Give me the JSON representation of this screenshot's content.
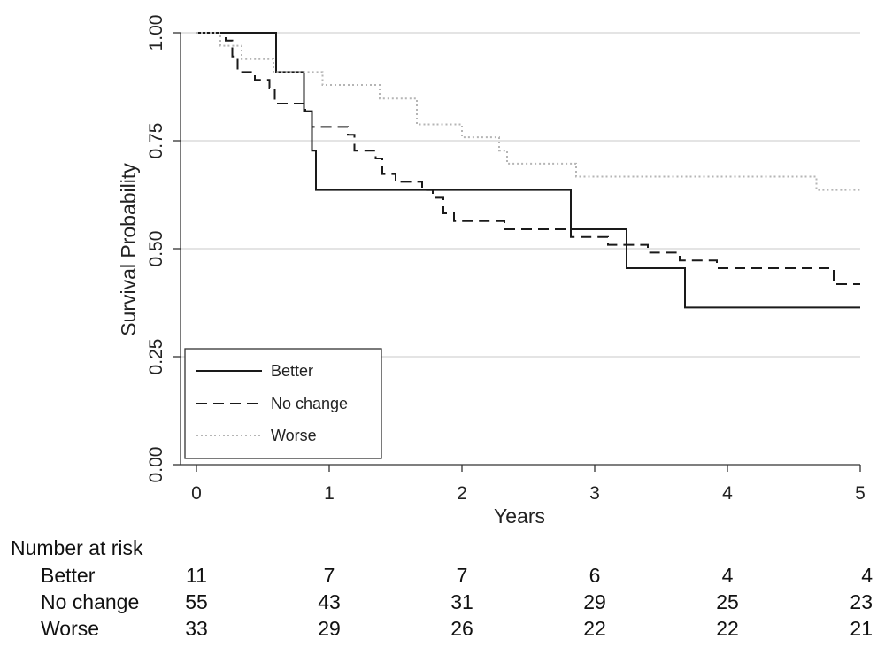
{
  "chart_data": {
    "type": "line",
    "xlabel": "Years",
    "ylabel": "Survival Probability",
    "xlim": [
      0,
      5
    ],
    "ylim": [
      0,
      1
    ],
    "x_ticks": [
      0,
      1,
      2,
      3,
      4,
      5
    ],
    "x_tick_labels": [
      "0",
      "1",
      "2",
      "3",
      "4",
      "5"
    ],
    "y_ticks": [
      0,
      0.25,
      0.5,
      0.75,
      1
    ],
    "y_tick_labels": [
      "0.00",
      "0.25",
      "0.50",
      "0.75",
      "1.00"
    ],
    "grid": "horizontal",
    "legend_position": "bottom-left",
    "series": [
      {
        "name": "Better",
        "style": "solid",
        "color": "#1a1a1a",
        "points": [
          [
            0,
            1.0
          ],
          [
            0.6,
            1.0
          ],
          [
            0.6,
            0.909
          ],
          [
            0.81,
            0.909
          ],
          [
            0.81,
            0.818
          ],
          [
            0.87,
            0.818
          ],
          [
            0.87,
            0.727
          ],
          [
            0.9,
            0.727
          ],
          [
            0.9,
            0.636
          ],
          [
            2.82,
            0.636
          ],
          [
            2.82,
            0.545
          ],
          [
            3.24,
            0.545
          ],
          [
            3.24,
            0.455
          ],
          [
            3.68,
            0.455
          ],
          [
            3.68,
            0.364
          ],
          [
            5.0,
            0.364
          ]
        ]
      },
      {
        "name": "No change",
        "style": "dashed",
        "color": "#1a1a1a",
        "points": [
          [
            0,
            1.0
          ],
          [
            0.22,
            1.0
          ],
          [
            0.22,
            0.982
          ],
          [
            0.27,
            0.982
          ],
          [
            0.27,
            0.945
          ],
          [
            0.31,
            0.945
          ],
          [
            0.31,
            0.909
          ],
          [
            0.44,
            0.909
          ],
          [
            0.44,
            0.891
          ],
          [
            0.55,
            0.891
          ],
          [
            0.55,
            0.873
          ],
          [
            0.59,
            0.873
          ],
          [
            0.59,
            0.836
          ],
          [
            0.82,
            0.836
          ],
          [
            0.82,
            0.818
          ],
          [
            0.87,
            0.818
          ],
          [
            0.87,
            0.782
          ],
          [
            1.14,
            0.782
          ],
          [
            1.14,
            0.764
          ],
          [
            1.19,
            0.764
          ],
          [
            1.19,
            0.727
          ],
          [
            1.35,
            0.727
          ],
          [
            1.35,
            0.709
          ],
          [
            1.4,
            0.709
          ],
          [
            1.4,
            0.673
          ],
          [
            1.5,
            0.673
          ],
          [
            1.5,
            0.655
          ],
          [
            1.7,
            0.655
          ],
          [
            1.7,
            0.636
          ],
          [
            1.78,
            0.636
          ],
          [
            1.78,
            0.618
          ],
          [
            1.86,
            0.618
          ],
          [
            1.86,
            0.582
          ],
          [
            1.94,
            0.582
          ],
          [
            1.94,
            0.564
          ],
          [
            2.32,
            0.564
          ],
          [
            2.32,
            0.545
          ],
          [
            2.82,
            0.545
          ],
          [
            2.82,
            0.527
          ],
          [
            3.1,
            0.527
          ],
          [
            3.1,
            0.509
          ],
          [
            3.4,
            0.509
          ],
          [
            3.4,
            0.491
          ],
          [
            3.64,
            0.491
          ],
          [
            3.64,
            0.473
          ],
          [
            3.92,
            0.473
          ],
          [
            3.92,
            0.455
          ],
          [
            4.8,
            0.455
          ],
          [
            4.8,
            0.418
          ],
          [
            5.0,
            0.418
          ]
        ]
      },
      {
        "name": "Worse",
        "style": "dotted",
        "color": "#b5b5b5",
        "points": [
          [
            0,
            1.0
          ],
          [
            0.18,
            1.0
          ],
          [
            0.18,
            0.97
          ],
          [
            0.34,
            0.97
          ],
          [
            0.34,
            0.939
          ],
          [
            0.5,
            0.939
          ],
          [
            0.5,
            0.939
          ],
          [
            0.58,
            0.939
          ],
          [
            0.58,
            0.909
          ],
          [
            0.95,
            0.909
          ],
          [
            0.95,
            0.879
          ],
          [
            1.38,
            0.879
          ],
          [
            1.38,
            0.848
          ],
          [
            1.66,
            0.848
          ],
          [
            1.66,
            0.788
          ],
          [
            2.0,
            0.788
          ],
          [
            2.0,
            0.758
          ],
          [
            2.28,
            0.758
          ],
          [
            2.28,
            0.727
          ],
          [
            2.34,
            0.727
          ],
          [
            2.34,
            0.697
          ],
          [
            2.86,
            0.697
          ],
          [
            2.86,
            0.667
          ],
          [
            4.67,
            0.667
          ],
          [
            4.67,
            0.636
          ],
          [
            5.0,
            0.636
          ]
        ]
      }
    ]
  },
  "risk_table": {
    "title": "Number at risk",
    "time_points": [
      0,
      1,
      2,
      3,
      4,
      5
    ],
    "rows": [
      {
        "label": "Better",
        "values": [
          "11",
          "7",
          "7",
          "6",
          "4",
          "4"
        ]
      },
      {
        "label": "No change",
        "values": [
          "55",
          "43",
          "31",
          "29",
          "25",
          "23"
        ]
      },
      {
        "label": "Worse",
        "values": [
          "33",
          "29",
          "26",
          "22",
          "22",
          "21"
        ]
      }
    ]
  }
}
